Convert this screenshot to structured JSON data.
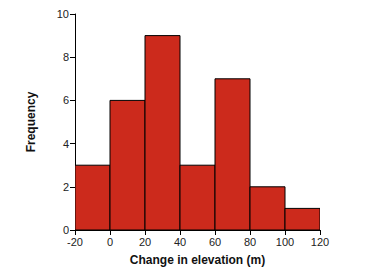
{
  "chart_data": {
    "type": "histogram",
    "x_label": "Change in elevation (m)",
    "y_label": "Frequency",
    "bins": [
      -20,
      0,
      20,
      40,
      60,
      80,
      100,
      120
    ],
    "values": [
      3,
      6,
      9,
      3,
      7,
      2,
      1
    ],
    "color": "#cc2a1c",
    "xlim": [
      -20,
      120
    ],
    "xticks": [
      -20,
      0,
      20,
      40,
      60,
      80,
      100,
      120
    ],
    "ylim": [
      0,
      10
    ],
    "yticks": [
      0,
      2,
      4,
      6,
      8,
      10
    ],
    "grid": false
  }
}
